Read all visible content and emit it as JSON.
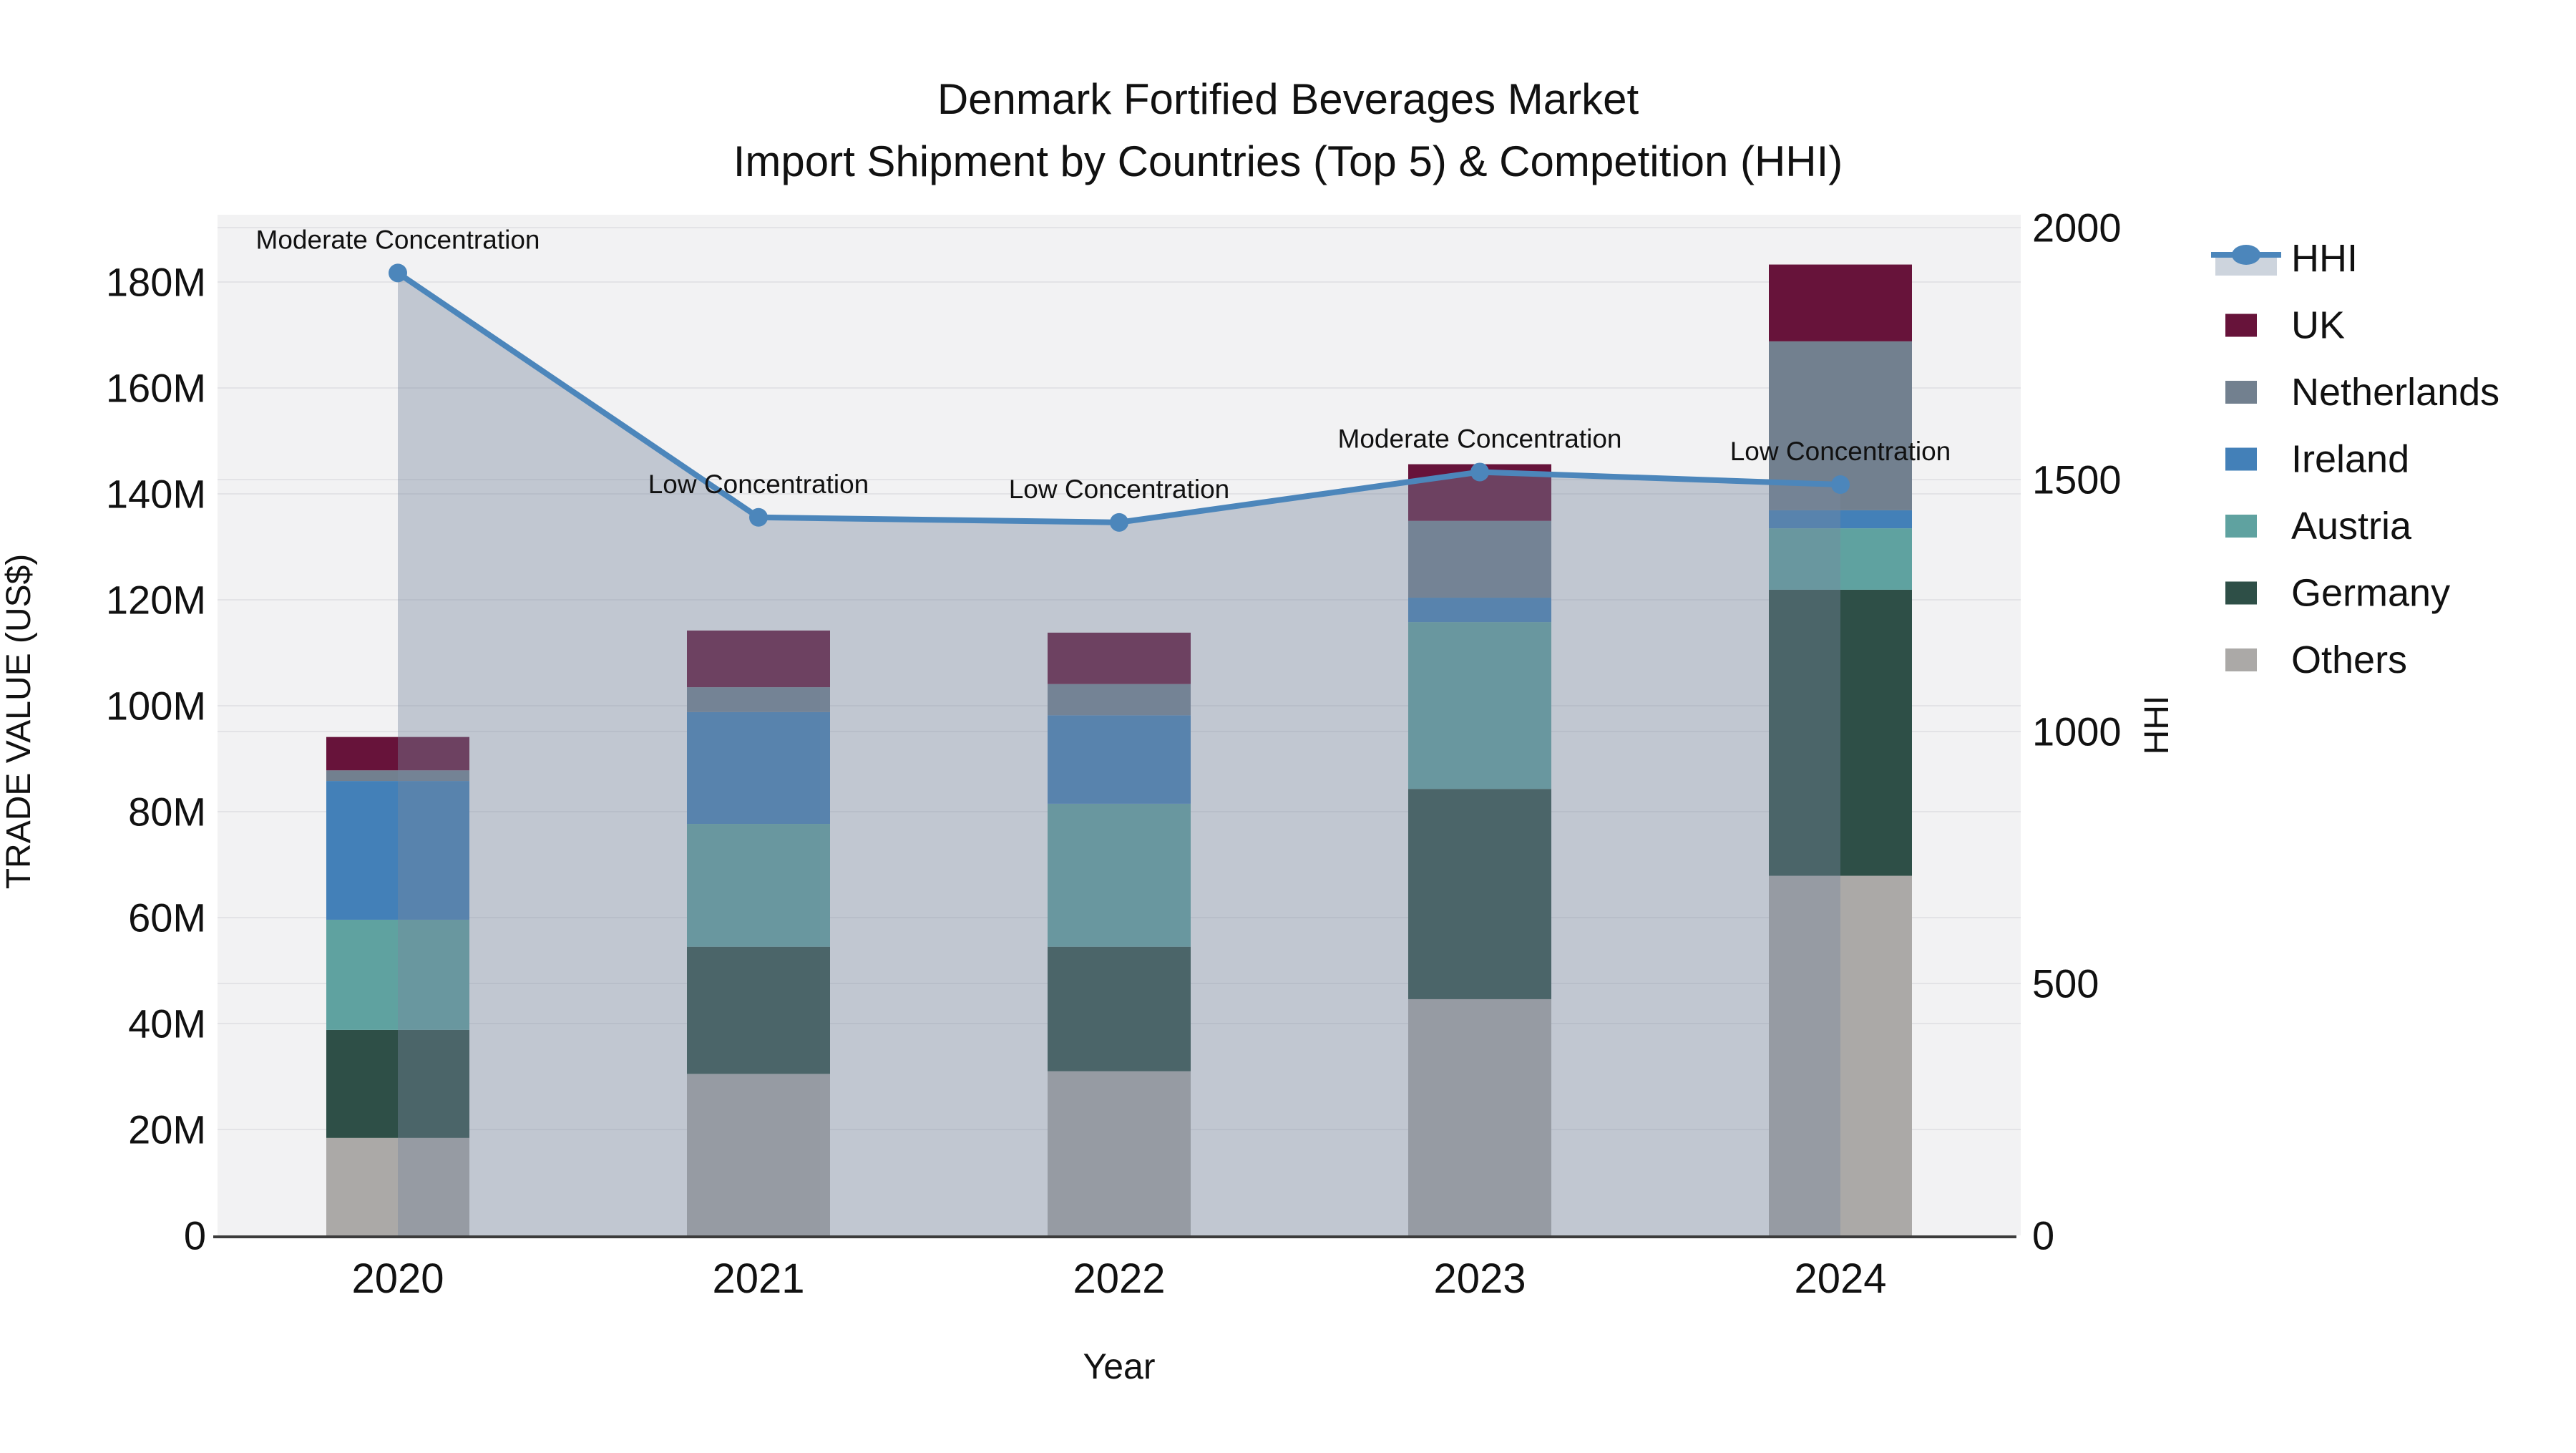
{
  "title": {
    "line1": "Denmark Fortified Beverages Market",
    "line2": "Import Shipment by Countries (Top 5) & Competition (HHI)"
  },
  "axes": {
    "x_label": "Year",
    "y_left_label": "TRADE VALUE (US$)",
    "y_right_label": "HHI",
    "y_left_tick_labels": [
      "0",
      "20M",
      "40M",
      "60M",
      "80M",
      "100M",
      "120M",
      "140M",
      "160M",
      "180M"
    ],
    "y_left_tick_values": [
      0,
      20,
      40,
      60,
      80,
      100,
      120,
      140,
      160,
      180
    ],
    "y_right_tick_labels": [
      "0",
      "500",
      "1000",
      "1500",
      "2000"
    ],
    "y_right_tick_values": [
      0,
      500,
      1000,
      1500,
      2000
    ]
  },
  "legend": {
    "entries": [
      {
        "key": "hhi",
        "label": "HHI",
        "type": "line"
      },
      {
        "key": "uk",
        "label": "UK",
        "type": "swatch"
      },
      {
        "key": "netherlands",
        "label": "Netherlands",
        "type": "swatch"
      },
      {
        "key": "ireland",
        "label": "Ireland",
        "type": "swatch"
      },
      {
        "key": "austria",
        "label": "Austria",
        "type": "swatch"
      },
      {
        "key": "germany",
        "label": "Germany",
        "type": "swatch"
      },
      {
        "key": "others",
        "label": "Others",
        "type": "swatch"
      }
    ]
  },
  "colors": {
    "uk": "#67133A",
    "netherlands": "#72808F",
    "ireland": "#4380B8",
    "austria": "#5FA2A0",
    "germany": "#2E4F47",
    "others": "#ABA9A7",
    "hhi_line": "#4C86BB",
    "hhi_area": "rgba(121,136,158,0.40)",
    "legend_area_band": "#CDD4DD",
    "plot_bg": "#F2F2F3",
    "grid": "#E3E3E6",
    "axis_line": "#3C3C3C",
    "text": "#111111"
  },
  "chart_data": {
    "type": "bar",
    "subtype": "stacked-bars-with-line-overlay",
    "title": "Denmark Fortified Beverages Market — Import Shipment by Countries (Top 5) & Competition (HHI)",
    "xlabel": "Year",
    "ylabel_left": "TRADE VALUE (US$)",
    "ylabel_right": "HHI",
    "categories": [
      "2020",
      "2021",
      "2022",
      "2023",
      "2024"
    ],
    "value_unit": "million US$",
    "ylim_left_musd": [
      0,
      192.7
    ],
    "ylim_right_hhi": [
      0,
      2000
    ],
    "grid": true,
    "legend_position": "right-outside",
    "series": [
      {
        "name": "Others",
        "key": "others",
        "values": [
          18.4,
          30.5,
          31.0,
          44.6,
          67.9
        ]
      },
      {
        "name": "Germany",
        "key": "germany",
        "values": [
          20.4,
          24.0,
          23.5,
          39.7,
          54.0
        ]
      },
      {
        "name": "Austria",
        "key": "austria",
        "values": [
          20.8,
          23.2,
          27.0,
          31.5,
          11.6
        ]
      },
      {
        "name": "Ireland",
        "key": "ireland",
        "values": [
          26.2,
          21.1,
          16.7,
          4.6,
          3.4
        ]
      },
      {
        "name": "Netherlands",
        "key": "netherlands",
        "values": [
          2.0,
          4.7,
          5.9,
          14.5,
          31.9
        ]
      },
      {
        "name": "UK",
        "key": "uk",
        "values": [
          6.3,
          10.7,
          9.7,
          10.7,
          14.5
        ]
      }
    ],
    "bar_totals_musd": [
      94.1,
      114.2,
      113.8,
      145.6,
      183.3
    ],
    "hhi_line": {
      "name": "HHI",
      "values": [
        1910,
        1425,
        1415,
        1515,
        1490
      ],
      "annotations": [
        "Moderate Concentration",
        "Low Concentration",
        "Low Concentration",
        "Moderate Concentration",
        "Low Concentration"
      ]
    }
  }
}
